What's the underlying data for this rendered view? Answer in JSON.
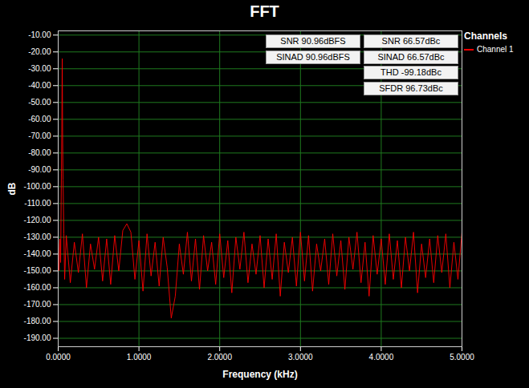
{
  "chart_data": {
    "type": "line",
    "title": "FFT",
    "x_label": "Frequency (kHz)",
    "y_label": "dB",
    "xlim": [
      0,
      5
    ],
    "ylim": [
      -195,
      -7.5
    ],
    "xticks": [
      {
        "value": 0,
        "label": "0.0000"
      },
      {
        "value": 1,
        "label": "1.0000"
      },
      {
        "value": 2,
        "label": "2.0000"
      },
      {
        "value": 3,
        "label": "3.0000"
      },
      {
        "value": 4,
        "label": "4.0000"
      },
      {
        "value": 5,
        "label": "5.0000"
      }
    ],
    "yticks": [
      {
        "value": -10,
        "label": "-10.00"
      },
      {
        "value": -20,
        "label": "-20.00"
      },
      {
        "value": -30,
        "label": "-30.00"
      },
      {
        "value": -40,
        "label": "-40.00"
      },
      {
        "value": -50,
        "label": "-50.00"
      },
      {
        "value": -60,
        "label": "-60.00"
      },
      {
        "value": -70,
        "label": "-70.00"
      },
      {
        "value": -80,
        "label": "-80.00"
      },
      {
        "value": -90,
        "label": "-90.00"
      },
      {
        "value": -100,
        "label": "-100.00"
      },
      {
        "value": -110,
        "label": "-110.00"
      },
      {
        "value": -120,
        "label": "-120.00"
      },
      {
        "value": -130,
        "label": "-130.00"
      },
      {
        "value": -140,
        "label": "-140.00"
      },
      {
        "value": -150,
        "label": "-150.00"
      },
      {
        "value": -160,
        "label": "-160.00"
      },
      {
        "value": -170,
        "label": "-170.00"
      },
      {
        "value": -180,
        "label": "-180.00"
      },
      {
        "value": -190,
        "label": "-190.00"
      }
    ],
    "grid": true,
    "legend": "right",
    "legend_title": "Channels",
    "annotations": [
      "SNR 90.96dBFS",
      "SINAD 90.96dBFS",
      "SNR 66.57dBc",
      "SINAD 66.57dBc",
      "THD -99.18dBc",
      "SFDR 96.73dBc"
    ],
    "x": [
      0,
      0.01,
      0.02,
      0.03,
      0.04,
      0.045,
      0.05,
      0.055,
      0.06,
      0.07,
      0.08,
      0.1,
      0.15,
      0.2,
      0.25,
      0.3,
      0.35,
      0.4,
      0.45,
      0.5,
      0.55,
      0.6,
      0.65,
      0.7,
      0.75,
      0.8,
      0.85,
      0.9,
      0.95,
      1.0,
      1.05,
      1.1,
      1.15,
      1.2,
      1.25,
      1.3,
      1.35,
      1.4,
      1.45,
      1.5,
      1.55,
      1.6,
      1.65,
      1.7,
      1.75,
      1.8,
      1.85,
      1.9,
      1.95,
      2.0,
      2.05,
      2.1,
      2.15,
      2.2,
      2.25,
      2.3,
      2.35,
      2.4,
      2.45,
      2.5,
      2.55,
      2.6,
      2.65,
      2.7,
      2.75,
      2.8,
      2.85,
      2.9,
      2.95,
      3.0,
      3.05,
      3.1,
      3.15,
      3.2,
      3.25,
      3.3,
      3.35,
      3.4,
      3.45,
      3.5,
      3.55,
      3.6,
      3.65,
      3.7,
      3.75,
      3.8,
      3.85,
      3.9,
      3.95,
      4.0,
      4.05,
      4.1,
      4.15,
      4.2,
      4.25,
      4.3,
      4.35,
      4.4,
      4.45,
      4.5,
      4.55,
      4.6,
      4.65,
      4.7,
      4.75,
      4.8,
      4.85,
      4.9,
      4.95,
      5.0
    ],
    "series": [
      {
        "name": "Channel 1",
        "color": "#ff0000",
        "values": [
          -132,
          -150,
          -131,
          -145,
          -92,
          -68,
          -24,
          -72,
          -96,
          -128,
          -155,
          -129,
          -157,
          -133,
          -151,
          -128,
          -160,
          -134,
          -149,
          -130,
          -156,
          -131,
          -158,
          -129,
          -150,
          -126,
          -122,
          -127,
          -155,
          -132,
          -162,
          -128,
          -153,
          -133,
          -159,
          -130,
          -148,
          -178,
          -165,
          -134,
          -152,
          -127,
          -156,
          -131,
          -161,
          -129,
          -150,
          -133,
          -158,
          -128,
          -154,
          -132,
          -163,
          -130,
          -149,
          -127,
          -157,
          -134,
          -152,
          -129,
          -160,
          -131,
          -155,
          -128,
          -165,
          -133,
          -151,
          -130,
          -159,
          -127,
          -156,
          -129,
          -162,
          -134,
          -150,
          -131,
          -158,
          -128,
          -153,
          -132,
          -161,
          -130,
          -149,
          -127,
          -157,
          -133,
          -165,
          -129,
          -152,
          -131,
          -158,
          -128,
          -155,
          -132,
          -160,
          -130,
          -150,
          -127,
          -163,
          -134,
          -154,
          -131,
          -157,
          -129,
          -151,
          -128,
          -160,
          -133,
          -155,
          -127
        ]
      }
    ]
  }
}
